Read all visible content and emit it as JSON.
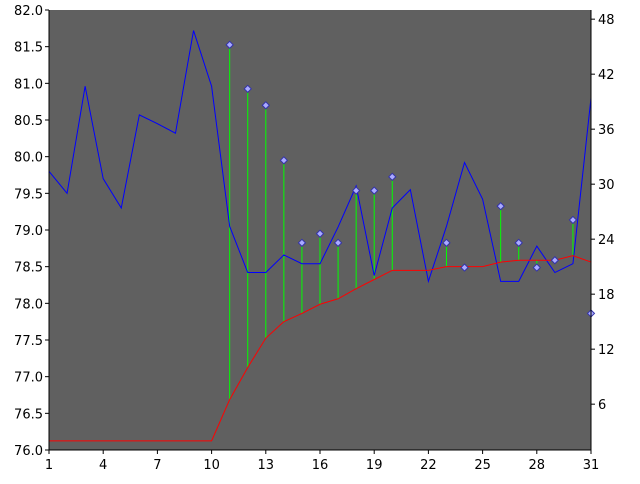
{
  "chart_data": {
    "type": "line",
    "x": [
      1,
      2,
      3,
      4,
      5,
      6,
      7,
      8,
      9,
      10,
      11,
      12,
      13,
      14,
      15,
      16,
      17,
      18,
      19,
      20,
      21,
      22,
      23,
      24,
      25,
      26,
      27,
      28,
      29,
      30,
      31
    ],
    "xlim": [
      1,
      31
    ],
    "xticks": [
      1,
      4,
      7,
      10,
      13,
      16,
      19,
      22,
      25,
      28,
      31
    ],
    "ylim_left": [
      76.0,
      82.0
    ],
    "yticks_left": [
      "76.0",
      "76.5",
      "77.0",
      "77.5",
      "78.0",
      "78.5",
      "79.0",
      "79.5",
      "80.0",
      "80.5",
      "81.0",
      "81.5",
      "82.0"
    ],
    "ylim_right": [
      1,
      49
    ],
    "yticks_right": [
      6,
      12,
      18,
      24,
      30,
      36,
      42,
      48
    ],
    "series": [
      {
        "axis": "left",
        "style": "line",
        "color": "#0000ff",
        "values": [
          79.8,
          79.5,
          80.96,
          79.7,
          79.3,
          80.57,
          80.45,
          80.32,
          81.72,
          80.96,
          79.05,
          78.42,
          78.42,
          78.66,
          78.54,
          78.54,
          79.04,
          79.6,
          78.38,
          79.3,
          79.55,
          78.3,
          79.05,
          79.92,
          79.42,
          78.3,
          78.3,
          78.78,
          78.42,
          78.54,
          80.8
        ]
      },
      {
        "axis": "right",
        "style": "line",
        "color": "#ff0000",
        "values": [
          2,
          2,
          2,
          2,
          2,
          2,
          2,
          2,
          2,
          2,
          6.5,
          10,
          13.2,
          15,
          15.9,
          16.9,
          17.5,
          18.6,
          19.6,
          20.6,
          20.6,
          20.6,
          21.0,
          21.0,
          21.0,
          21.5,
          21.7,
          21.7,
          21.7,
          22.2,
          21.5
        ]
      },
      {
        "axis": "right",
        "style": "diamond-markers",
        "color": "#aaaaff",
        "values": [
          null,
          null,
          null,
          null,
          null,
          null,
          null,
          null,
          null,
          null,
          45.2,
          40.4,
          38.6,
          32.6,
          23.6,
          24.6,
          23.6,
          29.3,
          29.3,
          30.8,
          null,
          null,
          23.6,
          20.9,
          null,
          27.6,
          23.6,
          20.9,
          21.7,
          26.1,
          15.9
        ]
      }
    ],
    "stems": {
      "color": "#00ff00",
      "from": "series-2-to-series-3"
    },
    "plot_background": "#606060",
    "grid": false,
    "legend": "none"
  }
}
